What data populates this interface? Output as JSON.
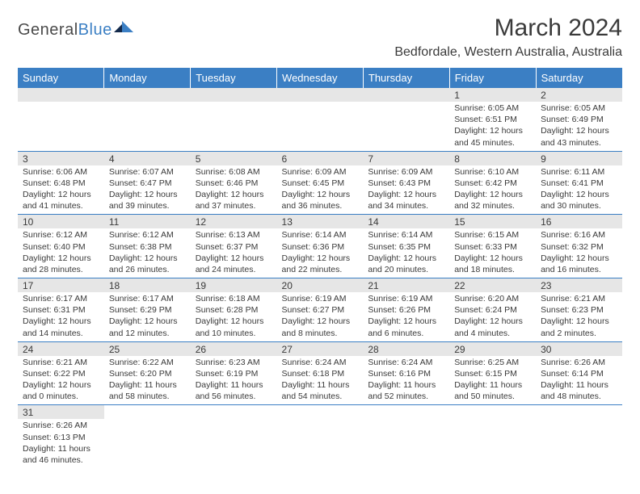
{
  "logo": {
    "text_a": "General",
    "text_b": "Blue"
  },
  "title": "March 2024",
  "location": "Bedfordale, Western Australia, Australia",
  "dow": [
    "Sunday",
    "Monday",
    "Tuesday",
    "Wednesday",
    "Thursday",
    "Friday",
    "Saturday"
  ],
  "colors": {
    "header_bg": "#3b7fc4",
    "header_fg": "#ffffff",
    "daynum_bg": "#e6e6e6",
    "border": "#3b7fc4",
    "text": "#3a3a3a"
  },
  "weeks": [
    [
      null,
      null,
      null,
      null,
      null,
      {
        "n": "1",
        "sr": "Sunrise: 6:05 AM",
        "ss": "Sunset: 6:51 PM",
        "d1": "Daylight: 12 hours",
        "d2": "and 45 minutes."
      },
      {
        "n": "2",
        "sr": "Sunrise: 6:05 AM",
        "ss": "Sunset: 6:49 PM",
        "d1": "Daylight: 12 hours",
        "d2": "and 43 minutes."
      }
    ],
    [
      {
        "n": "3",
        "sr": "Sunrise: 6:06 AM",
        "ss": "Sunset: 6:48 PM",
        "d1": "Daylight: 12 hours",
        "d2": "and 41 minutes."
      },
      {
        "n": "4",
        "sr": "Sunrise: 6:07 AM",
        "ss": "Sunset: 6:47 PM",
        "d1": "Daylight: 12 hours",
        "d2": "and 39 minutes."
      },
      {
        "n": "5",
        "sr": "Sunrise: 6:08 AM",
        "ss": "Sunset: 6:46 PM",
        "d1": "Daylight: 12 hours",
        "d2": "and 37 minutes."
      },
      {
        "n": "6",
        "sr": "Sunrise: 6:09 AM",
        "ss": "Sunset: 6:45 PM",
        "d1": "Daylight: 12 hours",
        "d2": "and 36 minutes."
      },
      {
        "n": "7",
        "sr": "Sunrise: 6:09 AM",
        "ss": "Sunset: 6:43 PM",
        "d1": "Daylight: 12 hours",
        "d2": "and 34 minutes."
      },
      {
        "n": "8",
        "sr": "Sunrise: 6:10 AM",
        "ss": "Sunset: 6:42 PM",
        "d1": "Daylight: 12 hours",
        "d2": "and 32 minutes."
      },
      {
        "n": "9",
        "sr": "Sunrise: 6:11 AM",
        "ss": "Sunset: 6:41 PM",
        "d1": "Daylight: 12 hours",
        "d2": "and 30 minutes."
      }
    ],
    [
      {
        "n": "10",
        "sr": "Sunrise: 6:12 AM",
        "ss": "Sunset: 6:40 PM",
        "d1": "Daylight: 12 hours",
        "d2": "and 28 minutes."
      },
      {
        "n": "11",
        "sr": "Sunrise: 6:12 AM",
        "ss": "Sunset: 6:38 PM",
        "d1": "Daylight: 12 hours",
        "d2": "and 26 minutes."
      },
      {
        "n": "12",
        "sr": "Sunrise: 6:13 AM",
        "ss": "Sunset: 6:37 PM",
        "d1": "Daylight: 12 hours",
        "d2": "and 24 minutes."
      },
      {
        "n": "13",
        "sr": "Sunrise: 6:14 AM",
        "ss": "Sunset: 6:36 PM",
        "d1": "Daylight: 12 hours",
        "d2": "and 22 minutes."
      },
      {
        "n": "14",
        "sr": "Sunrise: 6:14 AM",
        "ss": "Sunset: 6:35 PM",
        "d1": "Daylight: 12 hours",
        "d2": "and 20 minutes."
      },
      {
        "n": "15",
        "sr": "Sunrise: 6:15 AM",
        "ss": "Sunset: 6:33 PM",
        "d1": "Daylight: 12 hours",
        "d2": "and 18 minutes."
      },
      {
        "n": "16",
        "sr": "Sunrise: 6:16 AM",
        "ss": "Sunset: 6:32 PM",
        "d1": "Daylight: 12 hours",
        "d2": "and 16 minutes."
      }
    ],
    [
      {
        "n": "17",
        "sr": "Sunrise: 6:17 AM",
        "ss": "Sunset: 6:31 PM",
        "d1": "Daylight: 12 hours",
        "d2": "and 14 minutes."
      },
      {
        "n": "18",
        "sr": "Sunrise: 6:17 AM",
        "ss": "Sunset: 6:29 PM",
        "d1": "Daylight: 12 hours",
        "d2": "and 12 minutes."
      },
      {
        "n": "19",
        "sr": "Sunrise: 6:18 AM",
        "ss": "Sunset: 6:28 PM",
        "d1": "Daylight: 12 hours",
        "d2": "and 10 minutes."
      },
      {
        "n": "20",
        "sr": "Sunrise: 6:19 AM",
        "ss": "Sunset: 6:27 PM",
        "d1": "Daylight: 12 hours",
        "d2": "and 8 minutes."
      },
      {
        "n": "21",
        "sr": "Sunrise: 6:19 AM",
        "ss": "Sunset: 6:26 PM",
        "d1": "Daylight: 12 hours",
        "d2": "and 6 minutes."
      },
      {
        "n": "22",
        "sr": "Sunrise: 6:20 AM",
        "ss": "Sunset: 6:24 PM",
        "d1": "Daylight: 12 hours",
        "d2": "and 4 minutes."
      },
      {
        "n": "23",
        "sr": "Sunrise: 6:21 AM",
        "ss": "Sunset: 6:23 PM",
        "d1": "Daylight: 12 hours",
        "d2": "and 2 minutes."
      }
    ],
    [
      {
        "n": "24",
        "sr": "Sunrise: 6:21 AM",
        "ss": "Sunset: 6:22 PM",
        "d1": "Daylight: 12 hours",
        "d2": "and 0 minutes."
      },
      {
        "n": "25",
        "sr": "Sunrise: 6:22 AM",
        "ss": "Sunset: 6:20 PM",
        "d1": "Daylight: 11 hours",
        "d2": "and 58 minutes."
      },
      {
        "n": "26",
        "sr": "Sunrise: 6:23 AM",
        "ss": "Sunset: 6:19 PM",
        "d1": "Daylight: 11 hours",
        "d2": "and 56 minutes."
      },
      {
        "n": "27",
        "sr": "Sunrise: 6:24 AM",
        "ss": "Sunset: 6:18 PM",
        "d1": "Daylight: 11 hours",
        "d2": "and 54 minutes."
      },
      {
        "n": "28",
        "sr": "Sunrise: 6:24 AM",
        "ss": "Sunset: 6:16 PM",
        "d1": "Daylight: 11 hours",
        "d2": "and 52 minutes."
      },
      {
        "n": "29",
        "sr": "Sunrise: 6:25 AM",
        "ss": "Sunset: 6:15 PM",
        "d1": "Daylight: 11 hours",
        "d2": "and 50 minutes."
      },
      {
        "n": "30",
        "sr": "Sunrise: 6:26 AM",
        "ss": "Sunset: 6:14 PM",
        "d1": "Daylight: 11 hours",
        "d2": "and 48 minutes."
      }
    ],
    [
      {
        "n": "31",
        "sr": "Sunrise: 6:26 AM",
        "ss": "Sunset: 6:13 PM",
        "d1": "Daylight: 11 hours",
        "d2": "and 46 minutes."
      },
      null,
      null,
      null,
      null,
      null,
      null
    ]
  ]
}
